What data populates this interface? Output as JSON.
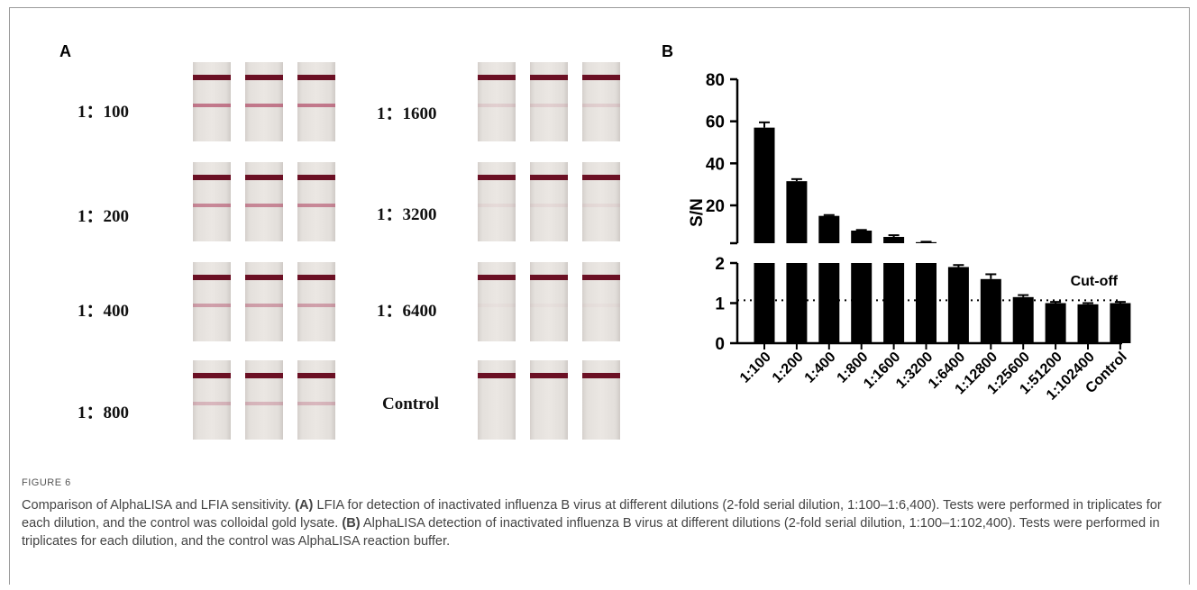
{
  "figure": {
    "label": "FIGURE 6",
    "caption_title": "Comparison of AlphaLISA and LFIA sensitivity.",
    "caption_a_tag": "(A)",
    "caption_a_text": "LFIA for detection of inactivated influenza B virus at different dilutions (2-fold serial dilution, 1:100–1:6,400). Tests were performed in triplicates for each dilution, and the control was colloidal gold lysate.",
    "caption_b_tag": "(B)",
    "caption_b_text": "AlphaLISA detection of inactivated influenza B virus at different dilutions (2-fold serial dilution, 1:100–1:102,400). Tests were performed in triplicates for each dilution, and the control was AlphaLISA reaction buffer."
  },
  "panel_a": {
    "letter": "A",
    "rows": [
      {
        "label": "1：100",
        "test_intensity": 0.7
      },
      {
        "label": "1：200",
        "test_intensity": 0.6
      },
      {
        "label": "1：400",
        "test_intensity": 0.45
      },
      {
        "label": "1：800",
        "test_intensity": 0.3
      },
      {
        "label": "1：1600",
        "test_intensity": 0.15
      },
      {
        "label": "1：3200",
        "test_intensity": 0.08
      },
      {
        "label": "1：6400",
        "test_intensity": 0.04
      },
      {
        "label": "Control",
        "test_intensity": 0.0
      }
    ]
  },
  "panel_b": {
    "letter": "B"
  },
  "chart_data": {
    "type": "bar",
    "ylabel": "S/N",
    "categories": [
      "1:100",
      "1:200",
      "1:400",
      "1:800",
      "1:1600",
      "1:3200",
      "1:6400",
      "1:12800",
      "1:25600",
      "1:51200",
      "1:102400",
      "Control"
    ],
    "values": [
      57,
      31.5,
      15,
      8,
      5,
      2.5,
      1.9,
      1.6,
      1.15,
      1.0,
      0.97,
      1.0
    ],
    "errors": [
      2.5,
      1.0,
      0.4,
      0.3,
      0.8,
      0.2,
      0.05,
      0.12,
      0.05,
      0.03,
      0.03,
      0.03
    ],
    "y_axis_break": true,
    "upper_ylim": [
      2,
      80
    ],
    "upper_yticks": [
      "20",
      "40",
      "60",
      "80"
    ],
    "lower_ylim": [
      0,
      2
    ],
    "lower_yticks": [
      "0",
      "1",
      "2"
    ],
    "cutoff": 1.07,
    "cutoff_label": "Cut-off",
    "bar_color": "#000000"
  }
}
